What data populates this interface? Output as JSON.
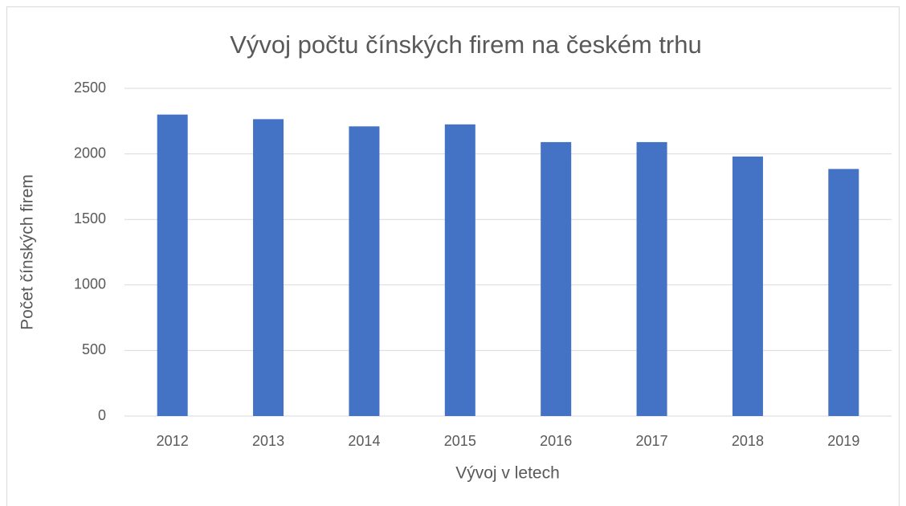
{
  "chart_data": {
    "type": "bar",
    "title": "Vývoj počtu čínských firem na českém trhu",
    "x_label": "Vývoj v letech",
    "y_label": "Počet čínských firem",
    "categories": [
      "2012",
      "2013",
      "2014",
      "2015",
      "2016",
      "2017",
      "2018",
      "2019"
    ],
    "values": [
      2300,
      2265,
      2210,
      2225,
      2090,
      2090,
      1980,
      1885
    ],
    "color": "#4472c4",
    "ylim": [
      0,
      2500
    ],
    "yticks": [
      0,
      500,
      1000,
      1500,
      2000,
      2500
    ],
    "grid": true
  }
}
